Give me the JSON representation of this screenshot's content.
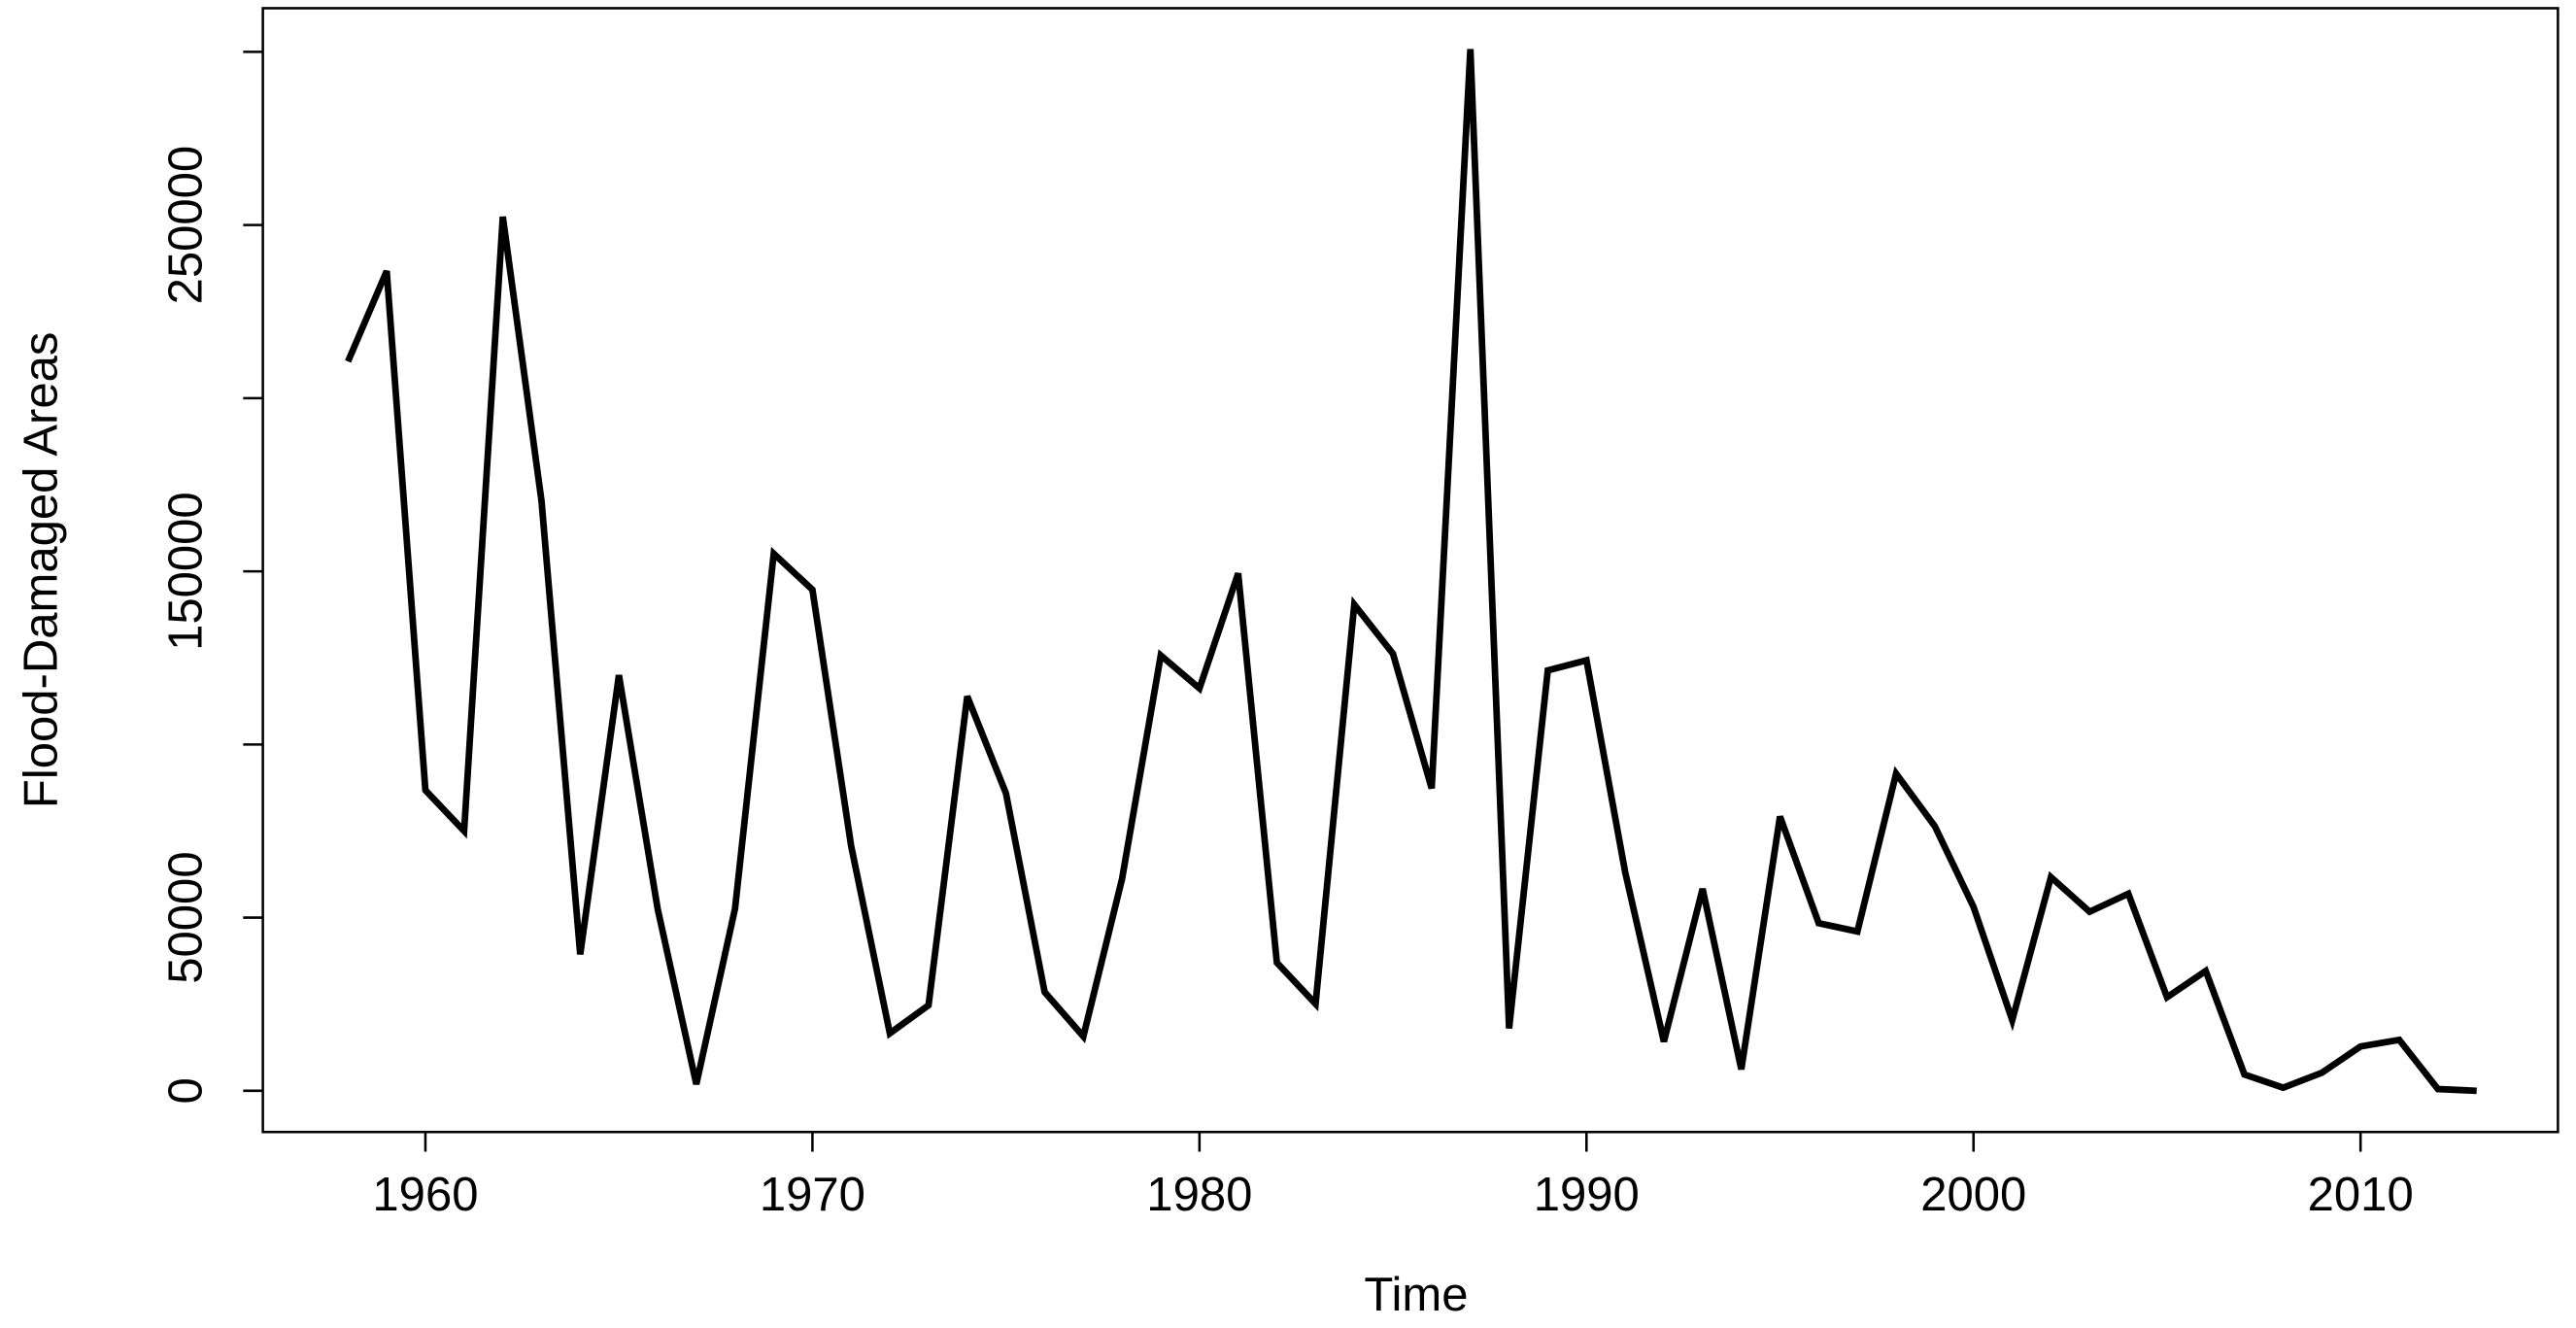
{
  "chart_data": {
    "type": "line",
    "x_label": "Time",
    "y_label": "Flood-Damaged Areas",
    "x": [
      1958,
      1959,
      1960,
      1961,
      1962,
      1963,
      1964,
      1965,
      1966,
      1967,
      1968,
      1969,
      1970,
      1971,
      1972,
      1973,
      1974,
      1975,
      1976,
      1977,
      1978,
      1979,
      1980,
      1981,
      1982,
      1983,
      1984,
      1985,
      1986,
      1987,
      1988,
      1989,
      1990,
      1991,
      1992,
      1993,
      1994,
      1995,
      1996,
      1997,
      1998,
      1999,
      2000,
      2001,
      2002,
      2003,
      2004,
      2005,
      2006,
      2007,
      2008,
      2009,
      2010,
      2011,
      2012,
      2013
    ],
    "series": [
      {
        "color": "#000000",
        "values": [
          210600,
          236700,
          86800,
          75000,
          252400,
          170300,
          39400,
          120000,
          52600,
          1900,
          52600,
          155100,
          144700,
          70700,
          16600,
          24700,
          113900,
          85900,
          28500,
          15700,
          61200,
          125700,
          116200,
          149400,
          37000,
          25100,
          140400,
          126200,
          87300,
          300800,
          18000,
          121400,
          124300,
          63100,
          14200,
          58300,
          6200,
          79200,
          48400,
          46000,
          91600,
          76400,
          53100,
          20400,
          61700,
          51700,
          56900,
          27000,
          34600,
          4700,
          900,
          5200,
          12800,
          14700,
          500,
          0
        ]
      }
    ],
    "xlim": [
      1955.8,
      2015.1
    ],
    "xticks": [
      1960,
      1970,
      1980,
      1990,
      2000,
      2010
    ],
    "ylim": [
      -11900,
      312600
    ],
    "yticks": [
      0,
      50000,
      {
        "value": 100000,
        "label": null
      },
      150000,
      {
        "value": 200000,
        "label": null
      },
      250000,
      {
        "value": 300000,
        "label": null
      }
    ]
  }
}
